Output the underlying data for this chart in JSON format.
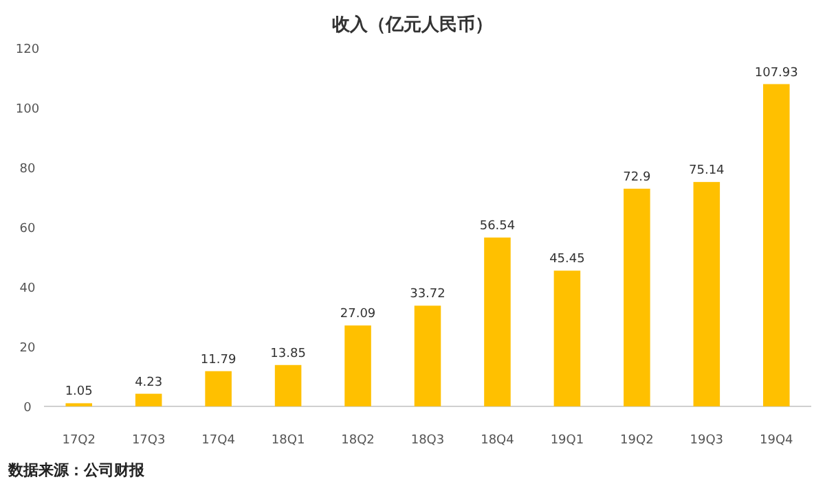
{
  "chart_data": {
    "type": "bar",
    "title": "收入（亿元人民币）",
    "categories": [
      "17Q2",
      "17Q3",
      "17Q4",
      "18Q1",
      "18Q2",
      "18Q3",
      "18Q4",
      "19Q1",
      "19Q2",
      "19Q3",
      "19Q4"
    ],
    "values": [
      1.05,
      4.23,
      11.79,
      13.85,
      27.09,
      33.72,
      56.54,
      45.45,
      72.9,
      75.14,
      107.93
    ],
    "color": "#ffc000",
    "ylim": [
      0,
      120
    ],
    "yticks": [
      0,
      20,
      40,
      60,
      80,
      100,
      120
    ],
    "grid": false,
    "data_labels": true,
    "annotations": [
      "数据来源：公司财报"
    ]
  }
}
